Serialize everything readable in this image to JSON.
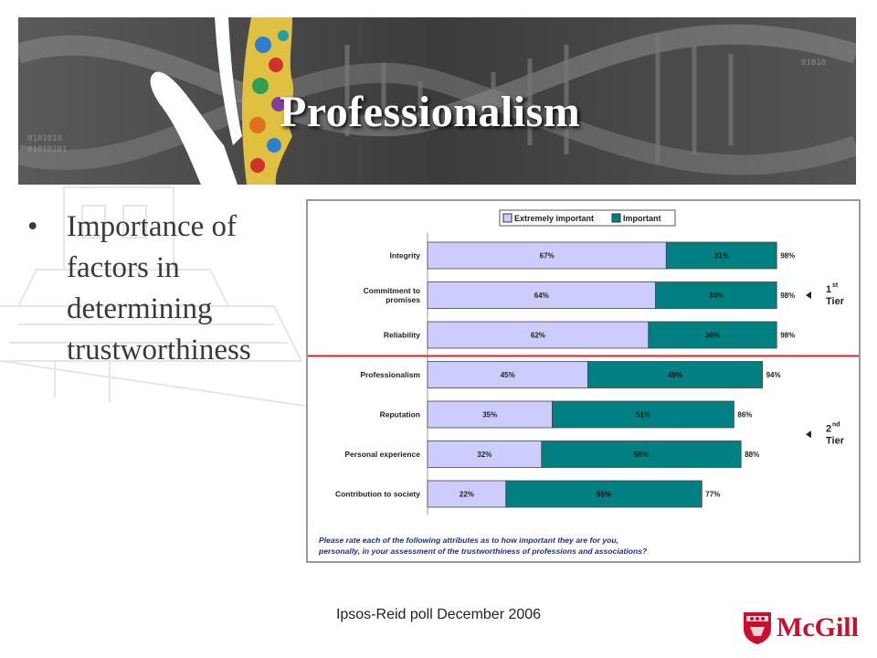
{
  "slide": {
    "title": "Professionalism",
    "bullet_lines": [
      "Importance of",
      "factors in",
      "determining",
      "trustworthiness"
    ],
    "footer": "Ipsos-Reid poll December 2006",
    "logo_text": "McGill",
    "logo_icon": "mcgill-crest-icon",
    "banner_glyphs": [
      "01010",
      "0101010",
      "01010101"
    ]
  },
  "colors": {
    "extremely_important": "#ccccff",
    "important": "#008080",
    "divider": "#e02020",
    "question_text": "#1f2f8f",
    "logo": "#c8102e"
  },
  "chart_data": {
    "type": "bar",
    "stacked": true,
    "orientation": "horizontal",
    "categories": [
      [
        "Integrity"
      ],
      [
        "Commitment to",
        "promises"
      ],
      [
        "Reliability"
      ],
      [
        "Professionalism"
      ],
      [
        "Reputation"
      ],
      [
        "Personal experience"
      ],
      [
        "Contribution to society"
      ]
    ],
    "series": [
      {
        "name": "Extremely important",
        "values": [
          67,
          64,
          62,
          45,
          35,
          32,
          22
        ],
        "labels": [
          "67%",
          "64%",
          "62%",
          "45%",
          "35%",
          "32%",
          "22%"
        ]
      },
      {
        "name": "Important",
        "values": [
          31,
          34,
          36,
          49,
          51,
          56,
          55
        ],
        "labels": [
          "31%",
          "34%",
          "36%",
          "49%",
          "51%",
          "56%",
          "55%"
        ]
      }
    ],
    "totals": [
      98,
      98,
      98,
      94,
      86,
      88,
      77
    ],
    "total_labels": [
      "98%",
      "98%",
      "98%",
      "94%",
      "86%",
      "88%",
      "77%"
    ],
    "xlim": [
      0,
      100
    ],
    "legend": "top",
    "divider_after_index": 2,
    "tiers": [
      {
        "main": "1",
        "sup": "st",
        "word": "Tier",
        "row_span": [
          0,
          2
        ]
      },
      {
        "main": "2",
        "sup": "nd",
        "word": "Tier",
        "row_span": [
          3,
          6
        ]
      }
    ],
    "question": [
      "Please rate each of the following attributes as to how important they are for you,",
      "personally, in your assessment of the trustworthiness of professions and associations?"
    ]
  }
}
